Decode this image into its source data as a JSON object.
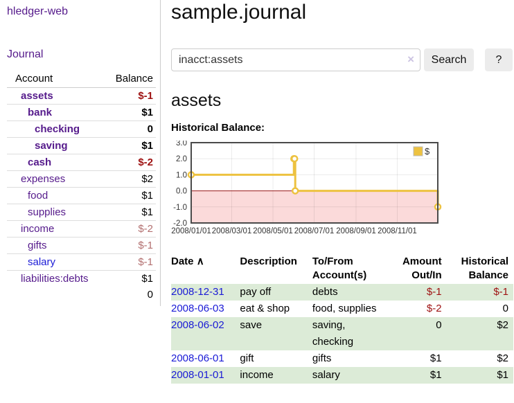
{
  "app": {
    "title": "hledger-web"
  },
  "colors": {
    "link_purple": "#551a8b",
    "link_blue": "#1a1ad6",
    "neg": "#9e1111",
    "neg_soft": "#b37070",
    "row_green": "#dcebd7",
    "accent": "#edc240",
    "chart_border": "#4a4a4a",
    "divider": "#cccccc"
  },
  "sidebar": {
    "nav": {
      "journal": "Journal"
    },
    "table": {
      "col_account": "Account",
      "col_balance": "Balance"
    },
    "accounts": [
      {
        "name": "assets",
        "level": 0,
        "bold": true,
        "link": "purple",
        "balance": "$-1",
        "balance_style": "neg"
      },
      {
        "name": "bank",
        "level": 1,
        "bold": true,
        "link": "purple",
        "balance": "$1",
        "balance_style": "normal"
      },
      {
        "name": "checking",
        "level": 2,
        "bold": true,
        "link": "purple",
        "balance": "0",
        "balance_style": "normal"
      },
      {
        "name": "saving",
        "level": 2,
        "bold": true,
        "link": "purple",
        "balance": "$1",
        "balance_style": "normal"
      },
      {
        "name": "cash",
        "level": 1,
        "bold": true,
        "link": "purple",
        "balance": "$-2",
        "balance_style": "neg"
      },
      {
        "name": "expenses",
        "level": 0,
        "bold": false,
        "link": "purple",
        "balance": "$2",
        "balance_style": "normal"
      },
      {
        "name": "food",
        "level": 1,
        "bold": false,
        "link": "purple",
        "balance": "$1",
        "balance_style": "normal"
      },
      {
        "name": "supplies",
        "level": 1,
        "bold": false,
        "link": "purple",
        "balance": "$1",
        "balance_style": "normal"
      },
      {
        "name": "income",
        "level": 0,
        "bold": false,
        "link": "purple",
        "balance": "$-2",
        "balance_style": "neg_soft"
      },
      {
        "name": "gifts",
        "level": 1,
        "bold": false,
        "link": "purple",
        "balance": "$-1",
        "balance_style": "neg_soft"
      },
      {
        "name": "salary",
        "level": 1,
        "bold": false,
        "link": "blue",
        "balance": "$-1",
        "balance_style": "neg_soft"
      },
      {
        "name": "liabilities:debts",
        "level": 0,
        "bold": false,
        "link": "purple",
        "balance": "$1",
        "balance_style": "normal"
      }
    ],
    "total": "0"
  },
  "main": {
    "title": "sample.journal",
    "search": {
      "value": "inacct:assets",
      "clear_icon": "×",
      "button_label": "Search",
      "help_label": "?"
    },
    "account_heading": "assets",
    "chart_title": "Historical Balance:"
  },
  "chart_data": {
    "type": "line",
    "title": "Historical Balance",
    "series": [
      {
        "name": "$",
        "step": true,
        "points": [
          [
            "2008-01-01",
            1
          ],
          [
            "2008-06-01",
            2
          ],
          [
            "2008-06-02",
            2
          ],
          [
            "2008-06-03",
            0
          ],
          [
            "2008-12-31",
            -1
          ]
        ]
      }
    ],
    "x_range": [
      "2008-01-01",
      "2008-12-31"
    ],
    "ylim": [
      -2,
      3
    ],
    "x_tick_labels": [
      "2008/01/01",
      "2008/03/01",
      "2008/05/01",
      "2008/07/01",
      "2008/09/01",
      "2008/11/01"
    ],
    "y_tick_labels": [
      "3.0",
      "2.0",
      "1.0",
      "0.0",
      "-1.0",
      "-2.0"
    ],
    "grid": true,
    "legend_position": "top-right",
    "negative_region_fill": "#fbdada",
    "zero_line_color": "#9b1b1b"
  },
  "register": {
    "columns": [
      "Date",
      "Description",
      "To/From Account(s)",
      "Amount Out/In",
      "Historical Balance"
    ],
    "sort_icon": "∧",
    "rows": [
      {
        "date": "2008-12-31",
        "description": "pay off",
        "accounts": "debts",
        "amount": "$-1",
        "amount_style": "neg",
        "balance": "$-1",
        "balance_style": "neg"
      },
      {
        "date": "2008-06-03",
        "description": "eat & shop",
        "accounts": "food, supplies",
        "amount": "$-2",
        "amount_style": "neg",
        "balance": "0",
        "balance_style": "normal"
      },
      {
        "date": "2008-06-02",
        "description": "save",
        "accounts": "saving, checking",
        "amount": "0",
        "amount_style": "normal",
        "balance": "$2",
        "balance_style": "normal"
      },
      {
        "date": "2008-06-01",
        "description": "gift",
        "accounts": "gifts",
        "amount": "$1",
        "amount_style": "normal",
        "balance": "$2",
        "balance_style": "normal"
      },
      {
        "date": "2008-01-01",
        "description": "income",
        "accounts": "salary",
        "amount": "$1",
        "amount_style": "normal",
        "balance": "$1",
        "balance_style": "normal"
      }
    ]
  }
}
